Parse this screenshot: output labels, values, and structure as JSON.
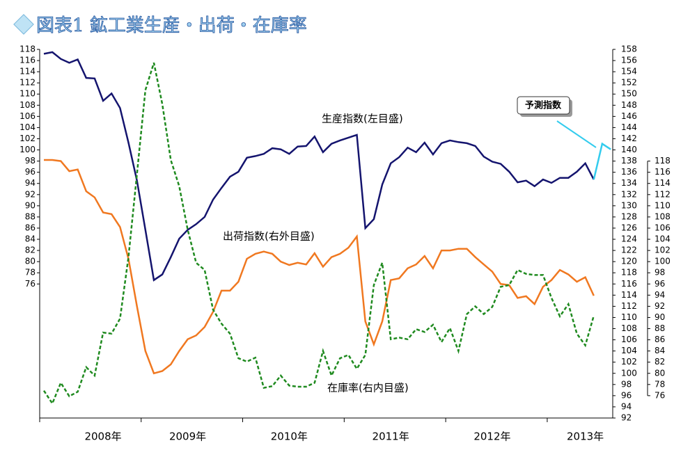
{
  "chart_data": {
    "type": "line",
    "title": "図表1 鉱工業生産・出荷・在庫率",
    "categories": [
      null,
      null,
      null,
      null,
      null,
      null,
      null,
      "2008年",
      null,
      null,
      null,
      null,
      null,
      null,
      null,
      null,
      null,
      "2009年",
      null,
      null,
      null,
      null,
      null,
      null,
      null,
      null,
      null,
      null,
      null,
      "2010年",
      null,
      null,
      null,
      null,
      null,
      null,
      null,
      null,
      null,
      null,
      null,
      "2011年",
      null,
      null,
      null,
      null,
      null,
      null,
      null,
      null,
      null,
      null,
      null,
      "2012年",
      null,
      null,
      null,
      null,
      null,
      null,
      null,
      null,
      null,
      null,
      "2013年",
      null,
      null,
      null
    ],
    "ylim": [
      52,
      118
    ],
    "yticks": [
      76,
      78,
      80,
      82,
      84,
      86,
      88,
      90,
      92,
      94,
      96,
      98,
      100,
      102,
      104,
      106,
      108,
      110,
      112,
      114,
      116,
      118
    ],
    "y2lim": [
      92,
      158
    ],
    "y2ticks": [
      92,
      94,
      96,
      98,
      100,
      102,
      104,
      106,
      108,
      110,
      112,
      114,
      116,
      118,
      120,
      122,
      124,
      126,
      128,
      130,
      132,
      134,
      136,
      138,
      140,
      142,
      144,
      146,
      148,
      150,
      152,
      154,
      156,
      158
    ],
    "y3lim": [
      72,
      138
    ],
    "y3ticks": [
      76,
      78,
      80,
      82,
      84,
      86,
      88,
      90,
      92,
      94,
      96,
      98,
      100,
      102,
      104,
      106,
      108,
      110,
      112,
      114,
      116,
      118
    ],
    "series": [
      {
        "name": "生産指数(左目盛)",
        "color": "#14146e",
        "axis": "y",
        "dash": false,
        "values": [
          117.2,
          117.5,
          116.3,
          115.6,
          116.2,
          112.9,
          112.8,
          108.8,
          110.1,
          107.5,
          101.3,
          94.5,
          85.7,
          76.7,
          77.7,
          80.8,
          84.1,
          85.7,
          86.7,
          88,
          91.1,
          93.2,
          95.2,
          96.1,
          98.6,
          98.9,
          99.3,
          100.3,
          100.1,
          99.3,
          100.6,
          100.7,
          102.4,
          99.6,
          101.1,
          101.7,
          102.2,
          102.7,
          86.0,
          87.6,
          93.8,
          97.6,
          98.7,
          100.4,
          99.6,
          101.3,
          99.2,
          101.2,
          101.7,
          101.4,
          101.2,
          100.7,
          98.8,
          97.9,
          97.5,
          96.1,
          94.2,
          94.5,
          93.5,
          94.7,
          94.1,
          95.0,
          95.0,
          96.1,
          97.6,
          94.7,
          null,
          null
        ]
      },
      {
        "name": "出荷指数(右外目盛)",
        "color": "#f07820",
        "axis": "y2",
        "dash": false,
        "values": [
          138.2,
          138.2,
          138,
          136.2,
          136.5,
          132.6,
          131.5,
          128.8,
          128.5,
          126.2,
          120.5,
          112.0,
          104.0,
          100.0,
          100.4,
          101.6,
          104.0,
          106.1,
          106.8,
          108.3,
          111.0,
          114.8,
          114.8,
          116.4,
          120.5,
          121.4,
          121.8,
          121.4,
          120.0,
          119.4,
          119.8,
          119.5,
          121.5,
          119.1,
          120.8,
          121.4,
          122.5,
          124.5,
          109.3,
          105.2,
          109.3,
          116.7,
          117.0,
          118.8,
          119.5,
          121.0,
          118.8,
          122.0,
          122.0,
          122.3,
          122.3,
          120.8,
          119.5,
          118.2,
          116.0,
          115.8,
          113.5,
          113.8,
          112.4,
          115.5,
          116.7,
          118.5,
          117.7,
          116.4,
          117.2,
          113.9,
          null,
          null
        ]
      },
      {
        "name": "在庫率(右内目盛)",
        "color": "#1f8a1f",
        "axis": "y3",
        "dash": true,
        "values": [
          76.9,
          74.6,
          78.3,
          75.9,
          76.7,
          81.1,
          79.6,
          87.3,
          87.1,
          89.8,
          100.8,
          115.7,
          130.7,
          135.6,
          128.2,
          118.2,
          113.5,
          105.7,
          99.8,
          98.5,
          91.4,
          88.9,
          87.1,
          82.7,
          82.1,
          82.8,
          77.4,
          77.7,
          79.6,
          77.8,
          77.6,
          77.6,
          78.3,
          84.0,
          79.6,
          82.7,
          83.3,
          80.8,
          83.3,
          95.8,
          99.8,
          86.1,
          86.4,
          86.1,
          87.9,
          87.4,
          88.7,
          85.6,
          88.1,
          84.0,
          90.6,
          92.0,
          90.6,
          91.9,
          95.5,
          95.8,
          98.5,
          97.8,
          97.6,
          97.6,
          93.5,
          90.2,
          92.4,
          87.1,
          85.0,
          90.3,
          null,
          null
        ]
      },
      {
        "name": "予測指数",
        "color": "#33ccee",
        "axis": "y",
        "dash": false,
        "values": [
          null,
          null,
          null,
          null,
          null,
          null,
          null,
          null,
          null,
          null,
          null,
          null,
          null,
          null,
          null,
          null,
          null,
          null,
          null,
          null,
          null,
          null,
          null,
          null,
          null,
          null,
          null,
          null,
          null,
          null,
          null,
          null,
          null,
          null,
          null,
          null,
          null,
          null,
          null,
          null,
          null,
          null,
          null,
          null,
          null,
          null,
          null,
          null,
          null,
          null,
          null,
          null,
          null,
          null,
          null,
          null,
          null,
          null,
          null,
          null,
          null,
          null,
          null,
          null,
          null,
          94.7,
          101.1,
          100.1
        ]
      }
    ]
  }
}
